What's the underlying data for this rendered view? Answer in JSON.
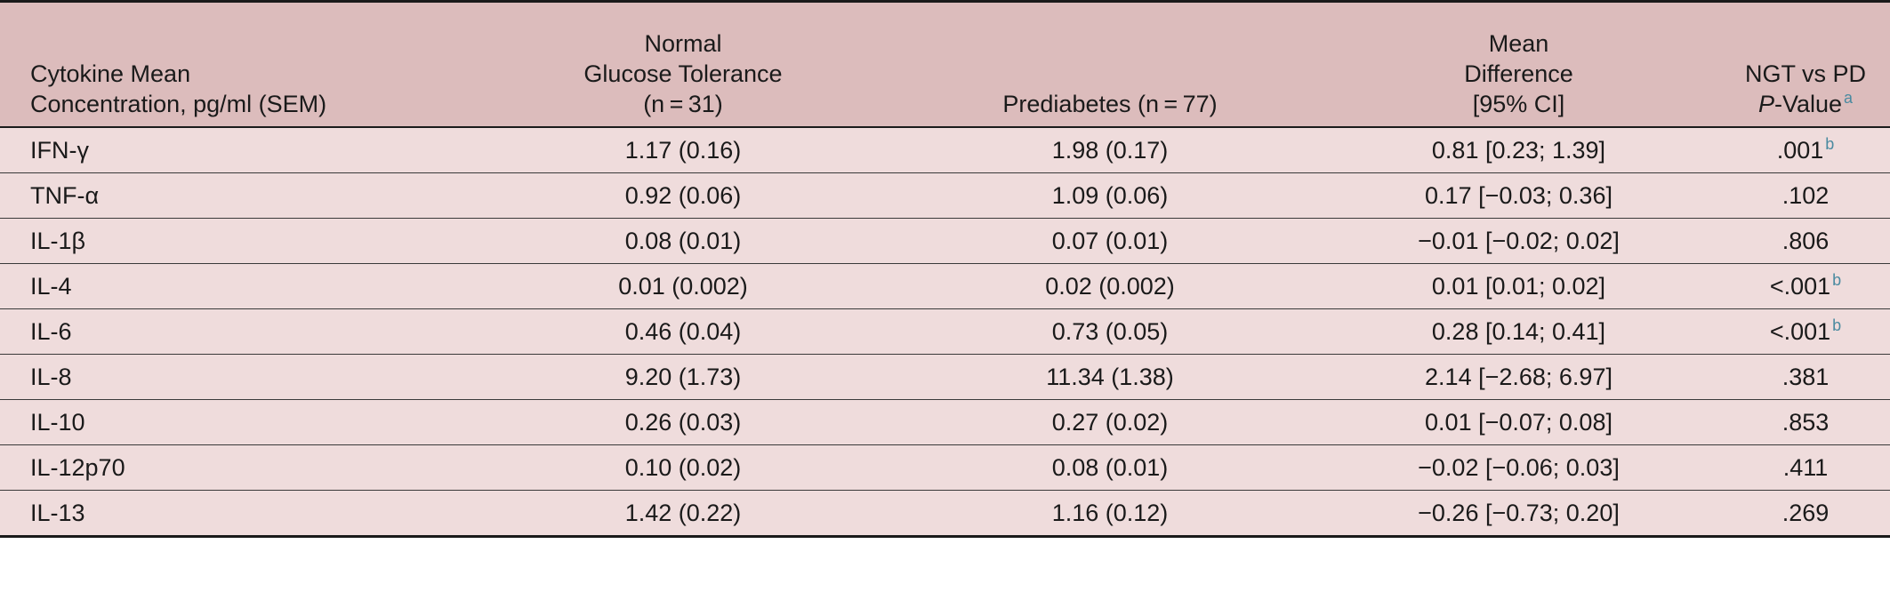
{
  "header": {
    "col0": [
      "Cytokine Mean",
      "Concentration, pg/ml (SEM)"
    ],
    "col1": [
      "Normal",
      "Glucose Tolerance",
      "(n = 31)"
    ],
    "col2": [
      "Prediabetes (n = 77)"
    ],
    "col3": [
      "Mean",
      "Difference",
      "[95% CI]"
    ],
    "col4_line1": "NGT vs PD",
    "col4_p": "P",
    "col4_value": "-Value",
    "col4_sup": "a"
  },
  "rows": [
    {
      "cytokine": "IFN-γ",
      "ngt": "1.17 (0.16)",
      "pd": "1.98 (0.17)",
      "diff": "0.81 [0.23; 1.39]",
      "p": ".001",
      "sup": "b"
    },
    {
      "cytokine": "TNF-α",
      "ngt": "0.92 (0.06)",
      "pd": "1.09 (0.06)",
      "diff": "0.17 [−0.03; 0.36]",
      "p": ".102",
      "sup": ""
    },
    {
      "cytokine": "IL-1β",
      "ngt": "0.08 (0.01)",
      "pd": "0.07 (0.01)",
      "diff": "−0.01 [−0.02; 0.02]",
      "p": ".806",
      "sup": ""
    },
    {
      "cytokine": "IL-4",
      "ngt": "0.01 (0.002)",
      "pd": "0.02 (0.002)",
      "diff": "0.01 [0.01; 0.02]",
      "p": "<.001",
      "sup": "b"
    },
    {
      "cytokine": "IL-6",
      "ngt": "0.46 (0.04)",
      "pd": "0.73 (0.05)",
      "diff": "0.28 [0.14; 0.41]",
      "p": "<.001",
      "sup": "b"
    },
    {
      "cytokine": "IL-8",
      "ngt": "9.20 (1.73)",
      "pd": "11.34 (1.38)",
      "diff": "2.14 [−2.68; 6.97]",
      "p": ".381",
      "sup": ""
    },
    {
      "cytokine": "IL-10",
      "ngt": "0.26 (0.03)",
      "pd": "0.27 (0.02)",
      "diff": "0.01 [−0.07; 0.08]",
      "p": ".853",
      "sup": ""
    },
    {
      "cytokine": "IL-12p70",
      "ngt": "0.10 (0.02)",
      "pd": "0.08 (0.01)",
      "diff": "−0.02 [−0.06; 0.03]",
      "p": ".411",
      "sup": ""
    },
    {
      "cytokine": "IL-13",
      "ngt": "1.42 (0.22)",
      "pd": "1.16 (0.12)",
      "diff": "−0.26 [−0.73; 0.20]",
      "p": ".269",
      "sup": ""
    }
  ]
}
